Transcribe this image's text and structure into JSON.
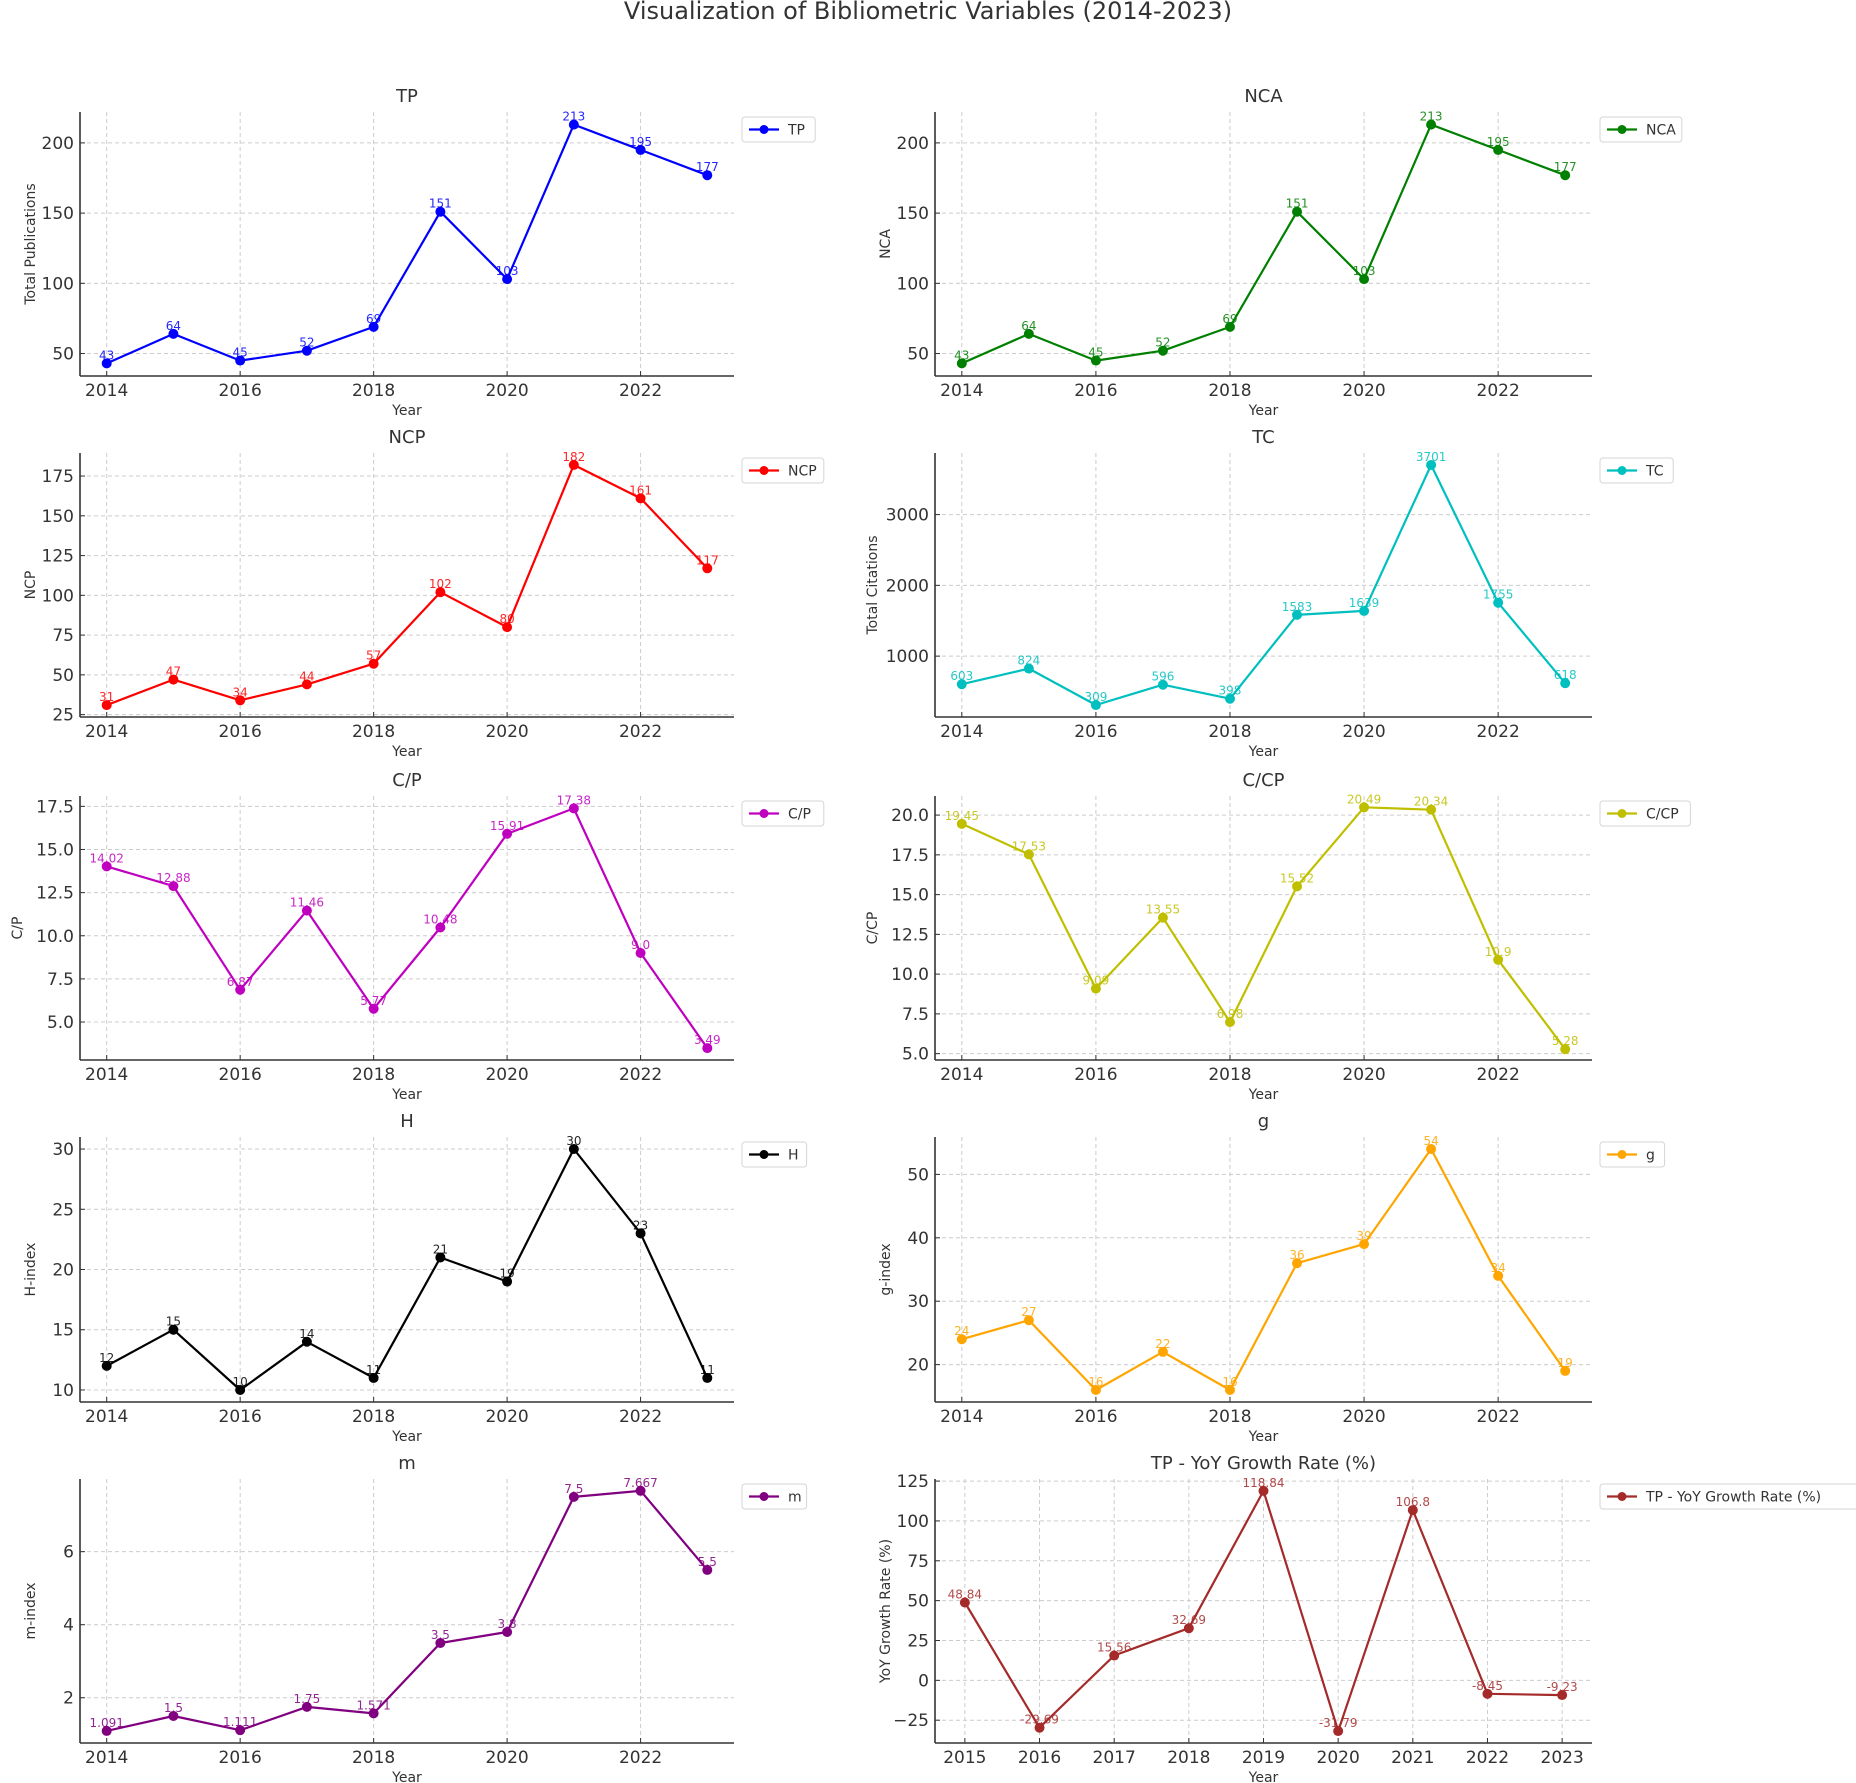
{
  "figure": {
    "title": "Visualization of Bibliometric Variables (2014-2023)"
  },
  "chart_data": [
    {
      "type": "line",
      "title": "TP",
      "xlabel": "Year",
      "ylabel": "Total Publications",
      "legend": "TP",
      "legend_position": "outside-top-right",
      "color": "#0000ff",
      "x": [
        2014,
        2015,
        2016,
        2017,
        2018,
        2019,
        2020,
        2021,
        2022,
        2023
      ],
      "values": [
        43,
        64,
        45,
        52,
        69,
        151,
        103,
        213,
        195,
        177
      ],
      "data_labels": [
        "43",
        "64",
        "45",
        "52",
        "69",
        "151",
        "103",
        "213",
        "195",
        "177"
      ],
      "xticks": [
        2014,
        2016,
        2018,
        2020,
        2022
      ],
      "yticks": [
        50,
        100,
        150,
        200
      ],
      "ytick_labels": [
        "50",
        "100",
        "150",
        "200"
      ],
      "xlim": [
        2013.6,
        2023.4
      ],
      "ylim": [
        34,
        222
      ],
      "grid": true
    },
    {
      "type": "line",
      "title": "NCA",
      "xlabel": "Year",
      "ylabel": "NCA",
      "legend": "NCA",
      "legend_position": "outside-top-right",
      "color": "#008000",
      "x": [
        2014,
        2015,
        2016,
        2017,
        2018,
        2019,
        2020,
        2021,
        2022,
        2023
      ],
      "values": [
        43,
        64,
        45,
        52,
        69,
        151,
        103,
        213,
        195,
        177
      ],
      "data_labels": [
        "43",
        "64",
        "45",
        "52",
        "69",
        "151",
        "103",
        "213",
        "195",
        "177"
      ],
      "xticks": [
        2014,
        2016,
        2018,
        2020,
        2022
      ],
      "yticks": [
        50,
        100,
        150,
        200
      ],
      "ytick_labels": [
        "50",
        "100",
        "150",
        "200"
      ],
      "xlim": [
        2013.6,
        2023.4
      ],
      "ylim": [
        34,
        222
      ],
      "grid": true
    },
    {
      "type": "line",
      "title": "NCP",
      "xlabel": "Year",
      "ylabel": "NCP",
      "legend": "NCP",
      "legend_position": "outside-top-right",
      "color": "#ff0000",
      "x": [
        2014,
        2015,
        2016,
        2017,
        2018,
        2019,
        2020,
        2021,
        2022,
        2023
      ],
      "values": [
        31,
        47,
        34,
        44,
        57,
        102,
        80,
        182,
        161,
        117
      ],
      "data_labels": [
        "31",
        "47",
        "34",
        "44",
        "57",
        "102",
        "80",
        "182",
        "161",
        "117"
      ],
      "xticks": [
        2014,
        2016,
        2018,
        2020,
        2022
      ],
      "yticks": [
        25,
        50,
        75,
        100,
        125,
        150,
        175
      ],
      "ytick_labels": [
        "25",
        "50",
        "75",
        "100",
        "125",
        "150",
        "175"
      ],
      "xlim": [
        2013.6,
        2023.4
      ],
      "ylim": [
        23.5,
        189.5
      ],
      "grid": true
    },
    {
      "type": "line",
      "title": "TC",
      "xlabel": "Year",
      "ylabel": "Total Citations",
      "legend": "TC",
      "legend_position": "outside-top-right",
      "color": "#00bfbf",
      "x": [
        2014,
        2015,
        2016,
        2017,
        2018,
        2019,
        2020,
        2021,
        2022,
        2023
      ],
      "values": [
        603,
        824,
        309,
        596,
        398,
        1583,
        1639,
        3701,
        1755,
        618
      ],
      "data_labels": [
        "603",
        "824",
        "309",
        "596",
        "398",
        "1583",
        "1639",
        "3701",
        "1755",
        "618"
      ],
      "xticks": [
        2014,
        2016,
        2018,
        2020,
        2022
      ],
      "yticks": [
        1000,
        2000,
        3000
      ],
      "ytick_labels": [
        "1000",
        "2000",
        "3000"
      ],
      "xlim": [
        2013.6,
        2023.4
      ],
      "ylim": [
        140,
        3870
      ],
      "grid": true
    },
    {
      "type": "line",
      "title": "C/P",
      "xlabel": "Year",
      "ylabel": "C/P",
      "legend": "C/P",
      "legend_position": "outside-top-right",
      "color": "#bf00bf",
      "x": [
        2014,
        2015,
        2016,
        2017,
        2018,
        2019,
        2020,
        2021,
        2022,
        2023
      ],
      "values": [
        14.02,
        12.88,
        6.87,
        11.46,
        5.77,
        10.48,
        15.91,
        17.38,
        9.0,
        3.49
      ],
      "data_labels": [
        "14.02",
        "12.88",
        "6.87",
        "11.46",
        "5.77",
        "10.48",
        "15.91",
        "17.38",
        "9.0",
        "3.49"
      ],
      "xticks": [
        2014,
        2016,
        2018,
        2020,
        2022
      ],
      "yticks": [
        5.0,
        7.5,
        10.0,
        12.5,
        15.0,
        17.5
      ],
      "ytick_labels": [
        "5.0",
        "7.5",
        "10.0",
        "12.5",
        "15.0",
        "17.5"
      ],
      "xlim": [
        2013.6,
        2023.4
      ],
      "ylim": [
        2.8,
        18.1
      ],
      "grid": true
    },
    {
      "type": "line",
      "title": "C/CP",
      "xlabel": "Year",
      "ylabel": "C/CP",
      "legend": "C/CP",
      "legend_position": "outside-top-right",
      "color": "#bfbf00",
      "x": [
        2014,
        2015,
        2016,
        2017,
        2018,
        2019,
        2020,
        2021,
        2022,
        2023
      ],
      "values": [
        19.45,
        17.53,
        9.09,
        13.55,
        6.98,
        15.52,
        20.49,
        20.34,
        10.9,
        5.28
      ],
      "data_labels": [
        "19.45",
        "17.53",
        "9.09",
        "13.55",
        "6.98",
        "15.52",
        "20.49",
        "20.34",
        "10.9",
        "5.28"
      ],
      "xticks": [
        2014,
        2016,
        2018,
        2020,
        2022
      ],
      "yticks": [
        5.0,
        7.5,
        10.0,
        12.5,
        15.0,
        17.5,
        20.0
      ],
      "ytick_labels": [
        "5.0",
        "7.5",
        "10.0",
        "12.5",
        "15.0",
        "17.5",
        "20.0"
      ],
      "xlim": [
        2013.6,
        2023.4
      ],
      "ylim": [
        4.6,
        21.2
      ],
      "grid": true
    },
    {
      "type": "line",
      "title": "H",
      "xlabel": "Year",
      "ylabel": "H-index",
      "legend": "H",
      "legend_position": "outside-top-right",
      "color": "#000000",
      "x": [
        2014,
        2015,
        2016,
        2017,
        2018,
        2019,
        2020,
        2021,
        2022,
        2023
      ],
      "values": [
        12,
        15,
        10,
        14,
        11,
        21,
        19,
        30,
        23,
        11
      ],
      "data_labels": [
        "12",
        "15",
        "10",
        "14",
        "11",
        "21",
        "19",
        "30",
        "23",
        "11"
      ],
      "xticks": [
        2014,
        2016,
        2018,
        2020,
        2022
      ],
      "yticks": [
        10,
        15,
        20,
        25,
        30
      ],
      "ytick_labels": [
        "10",
        "15",
        "20",
        "25",
        "30"
      ],
      "xlim": [
        2013.6,
        2023.4
      ],
      "ylim": [
        9,
        31
      ],
      "grid": true
    },
    {
      "type": "line",
      "title": "g",
      "xlabel": "Year",
      "ylabel": "g-index",
      "legend": "g",
      "legend_position": "outside-top-right",
      "color": "#ffa500",
      "x": [
        2014,
        2015,
        2016,
        2017,
        2018,
        2019,
        2020,
        2021,
        2022,
        2023
      ],
      "values": [
        24,
        27,
        16,
        22,
        16,
        36,
        39,
        54,
        34,
        19
      ],
      "data_labels": [
        "24",
        "27",
        "16",
        "22",
        "16",
        "36",
        "39",
        "54",
        "34",
        "19"
      ],
      "xticks": [
        2014,
        2016,
        2018,
        2020,
        2022
      ],
      "yticks": [
        20,
        30,
        40,
        50
      ],
      "ytick_labels": [
        "20",
        "30",
        "40",
        "50"
      ],
      "xlim": [
        2013.6,
        2023.4
      ],
      "ylim": [
        14.1,
        55.9
      ],
      "grid": true
    },
    {
      "type": "line",
      "title": "m",
      "xlabel": "Year",
      "ylabel": "m-index",
      "legend": "m",
      "legend_position": "outside-top-right",
      "color": "#800080",
      "x": [
        2014,
        2015,
        2016,
        2017,
        2018,
        2019,
        2020,
        2021,
        2022,
        2023
      ],
      "values": [
        1.091,
        1.5,
        1.111,
        1.75,
        1.571,
        3.5,
        3.8,
        7.5,
        7.667,
        5.5
      ],
      "data_labels": [
        "1.091",
        "1.5",
        "1.111",
        "1.75",
        "1.571",
        "3.5",
        "3.8",
        "7.5",
        "7.667",
        "5.5"
      ],
      "xticks": [
        2014,
        2016,
        2018,
        2020,
        2022
      ],
      "yticks": [
        2,
        4,
        6
      ],
      "ytick_labels": [
        "2",
        "4",
        "6"
      ],
      "xlim": [
        2013.6,
        2023.4
      ],
      "ylim": [
        0.76,
        7.99
      ],
      "grid": true
    },
    {
      "type": "line",
      "title": "TP - YoY Growth Rate (%)",
      "xlabel": "Year",
      "ylabel": "YoY Growth Rate (%)",
      "legend": "TP - YoY Growth Rate (%)",
      "legend_position": "outside-top-right",
      "color": "#a52a2a",
      "x": [
        2015,
        2016,
        2017,
        2018,
        2019,
        2020,
        2021,
        2022,
        2023
      ],
      "values": [
        48.84,
        -29.69,
        15.56,
        32.69,
        118.84,
        -31.79,
        106.8,
        -8.45,
        -9.23
      ],
      "data_labels": [
        "48.84",
        "-29.69",
        "15.56",
        "32.69",
        "118.84",
        "-31.79",
        "106.8",
        "-8.45",
        "-9.23"
      ],
      "xticks": [
        2015,
        2016,
        2017,
        2018,
        2019,
        2020,
        2021,
        2022,
        2023
      ],
      "yticks": [
        -25,
        0,
        25,
        50,
        75,
        100,
        125
      ],
      "ytick_labels": [
        "−25",
        "0",
        "25",
        "50",
        "75",
        "100",
        "125"
      ],
      "xlim": [
        2014.6,
        2023.4
      ],
      "ylim": [
        -39.3,
        126.3
      ],
      "grid": true
    }
  ]
}
